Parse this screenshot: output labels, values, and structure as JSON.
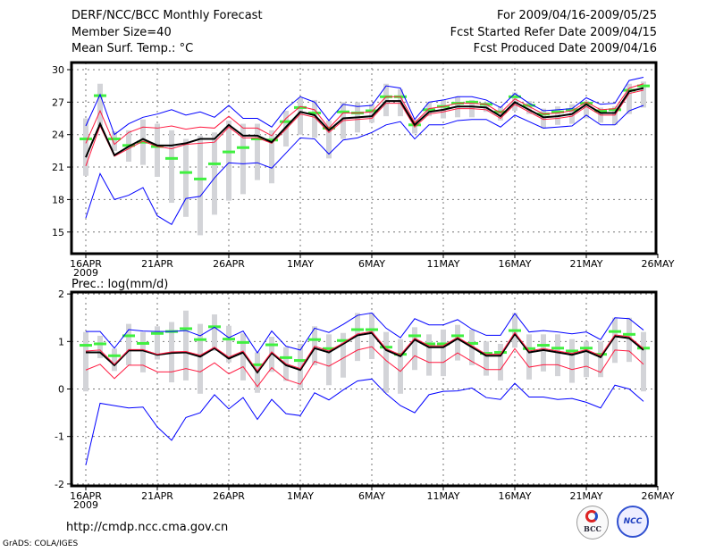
{
  "header": {
    "title": "DERF/NCC/BCC Monthly Forecast",
    "member_size": "Member Size=40",
    "variable": "Mean Surf. Temp.: °C",
    "period": "For 2009/04/16-2009/05/25",
    "started": "Fcst Started Refer Date 2009/04/15",
    "produced": "Fcst Produced Date 2009/04/16"
  },
  "footer": {
    "url": "http://cmdp.ncc.cma.gov.cn",
    "credit": "GrADS: COLA/IGES",
    "logo_bcc": "BCC",
    "logo_ncc": "NCC"
  },
  "colors": {
    "mean": "#000000",
    "red": "#ff1a40",
    "blue": "#0000ff",
    "green": "#40f040",
    "spread": "#d3d4d8"
  },
  "chart_data": [
    {
      "type": "line",
      "title": "Mean Surf. Temp.: °C",
      "ylim": [
        13,
        30.66
      ],
      "yticks": [
        15,
        18,
        21,
        24,
        27,
        30
      ],
      "xtick_labels": [
        "16APR",
        "21APR",
        "26APR",
        "1MAY",
        "6MAY",
        "11MAY",
        "16MAY",
        "21MAY",
        "26MAY"
      ],
      "xtick_year": "2009",
      "grid": true,
      "n_days": 40,
      "series": {
        "mean": [
          21.9,
          25.0,
          22.1,
          22.9,
          23.6,
          23.0,
          23.0,
          23.2,
          23.6,
          23.6,
          24.9,
          23.9,
          23.9,
          23.3,
          24.7,
          26.1,
          25.8,
          24.4,
          25.5,
          25.6,
          25.7,
          27.1,
          27.1,
          24.9,
          26.1,
          26.3,
          26.6,
          26.6,
          26.5,
          25.7,
          27.0,
          26.3,
          25.6,
          25.7,
          25.9,
          26.8,
          26.0,
          26.0,
          28.0,
          28.3
        ],
        "red_upper": [
          23.2,
          26.2,
          23.1,
          24.2,
          24.7,
          24.6,
          24.8,
          24.5,
          24.7,
          24.6,
          25.7,
          24.6,
          24.6,
          23.9,
          25.5,
          26.6,
          26.3,
          24.6,
          26.0,
          26.0,
          26.1,
          27.5,
          27.5,
          25.1,
          26.4,
          26.6,
          26.9,
          26.9,
          26.8,
          26.0,
          27.3,
          26.6,
          25.9,
          26.0,
          26.2,
          27.0,
          26.3,
          26.4,
          28.3,
          28.7
        ],
        "red_lower": [
          21.1,
          24.8,
          22.0,
          22.7,
          23.4,
          22.9,
          22.7,
          23.1,
          23.2,
          23.3,
          24.7,
          23.7,
          23.7,
          23.2,
          24.5,
          25.9,
          25.6,
          24.2,
          25.3,
          25.4,
          25.5,
          26.9,
          26.9,
          24.7,
          25.9,
          26.1,
          26.4,
          26.4,
          26.3,
          25.5,
          26.8,
          26.1,
          25.4,
          25.5,
          25.7,
          26.6,
          25.8,
          25.8,
          27.8,
          28.1
        ],
        "blue_upper": [
          24.8,
          27.7,
          24.0,
          25.0,
          25.6,
          25.9,
          26.3,
          25.8,
          26.1,
          25.6,
          26.7,
          25.5,
          25.5,
          24.7,
          26.4,
          27.5,
          27.0,
          25.3,
          26.8,
          26.6,
          26.7,
          28.5,
          28.3,
          25.4,
          27.0,
          27.2,
          27.5,
          27.5,
          27.2,
          26.5,
          27.8,
          26.9,
          26.2,
          26.3,
          26.4,
          27.4,
          26.8,
          26.9,
          29.0,
          29.3
        ],
        "blue_lower": [
          16.3,
          20.4,
          18.0,
          18.4,
          19.1,
          16.5,
          15.7,
          18.1,
          18.3,
          20.0,
          21.4,
          21.3,
          21.4,
          20.9,
          22.3,
          23.7,
          23.6,
          22.2,
          23.5,
          23.7,
          24.2,
          24.9,
          25.2,
          23.6,
          24.9,
          24.9,
          25.3,
          25.4,
          25.4,
          24.7,
          25.8,
          25.2,
          24.6,
          24.7,
          24.8,
          25.8,
          24.9,
          24.9,
          26.2,
          26.7
        ],
        "green": [
          23.6,
          27.6,
          23.6,
          23.0,
          23.3,
          22.9,
          21.8,
          20.5,
          19.9,
          21.3,
          22.4,
          22.8,
          23.6,
          23.5,
          25.2,
          26.5,
          26.0,
          24.6,
          26.1,
          26.0,
          26.2,
          27.5,
          27.5,
          24.9,
          26.3,
          26.6,
          26.9,
          27.0,
          26.8,
          26.1,
          27.5,
          26.7,
          25.9,
          26.1,
          26.3,
          26.9,
          26.2,
          26.3,
          28.1,
          28.5
        ],
        "spread_low": [
          20.2,
          24.8,
          22.5,
          21.5,
          21.2,
          20.1,
          17.7,
          16.4,
          14.7,
          16.6,
          17.9,
          18.5,
          19.8,
          19.5,
          22.9,
          24.0,
          23.7,
          21.8,
          23.6,
          24.2,
          25.1,
          25.7,
          25.7,
          24.1,
          25.7,
          25.5,
          25.6,
          25.6,
          26.1,
          25.3,
          26.2,
          25.9,
          24.6,
          24.9,
          25.0,
          25.5,
          25.1,
          24.9,
          25.9,
          26.5
        ],
        "spread_high": [
          25.5,
          28.7,
          24.3,
          24.4,
          25.4,
          25.0,
          24.4,
          23.6,
          23.9,
          24.2,
          25.3,
          25.0,
          25.0,
          24.4,
          26.2,
          27.4,
          27.2,
          25.3,
          27.0,
          27.0,
          26.8,
          28.7,
          28.2,
          25.4,
          27.0,
          27.2,
          27.5,
          27.2,
          27.0,
          26.6,
          27.9,
          27.1,
          26.4,
          26.6,
          26.8,
          27.1,
          26.5,
          26.6,
          28.7,
          28.9
        ]
      }
    },
    {
      "type": "line",
      "title": "Prec.: log(mm/d)",
      "ylim": [
        -2.04,
        2.04
      ],
      "yticks": [
        -2,
        -1,
        0,
        1,
        2
      ],
      "xtick_labels": [
        "16APR",
        "21APR",
        "26APR",
        "1MAY",
        "6MAY",
        "11MAY",
        "16MAY",
        "21MAY",
        "26MAY"
      ],
      "xtick_year": "2009",
      "grid": true,
      "n_days": 40,
      "series": {
        "mean": [
          0.77,
          0.77,
          0.5,
          0.81,
          0.81,
          0.72,
          0.76,
          0.77,
          0.68,
          0.86,
          0.64,
          0.77,
          0.35,
          0.76,
          0.5,
          0.4,
          0.86,
          0.77,
          0.95,
          1.13,
          1.18,
          0.82,
          0.69,
          1.04,
          0.88,
          0.88,
          1.06,
          0.88,
          0.7,
          0.7,
          1.16,
          0.77,
          0.82,
          0.77,
          0.72,
          0.8,
          0.67,
          1.11,
          1.07,
          0.82
        ],
        "red_upper": [
          0.8,
          0.82,
          0.52,
          0.83,
          0.83,
          0.73,
          0.78,
          0.79,
          0.71,
          0.88,
          0.67,
          0.8,
          0.38,
          0.78,
          0.53,
          0.43,
          0.9,
          0.8,
          0.97,
          1.16,
          1.21,
          0.85,
          0.72,
          1.07,
          0.91,
          0.91,
          1.09,
          0.91,
          0.73,
          0.73,
          1.19,
          0.8,
          0.85,
          0.8,
          0.75,
          0.83,
          0.7,
          1.14,
          1.1,
          0.85
        ],
        "red_lower": [
          0.4,
          0.52,
          0.22,
          0.5,
          0.5,
          0.36,
          0.36,
          0.43,
          0.36,
          0.55,
          0.32,
          0.47,
          0.05,
          0.45,
          0.2,
          0.1,
          0.58,
          0.48,
          0.65,
          0.82,
          0.89,
          0.6,
          0.37,
          0.7,
          0.56,
          0.56,
          0.76,
          0.58,
          0.41,
          0.41,
          0.85,
          0.46,
          0.51,
          0.51,
          0.41,
          0.48,
          0.35,
          0.82,
          0.8,
          0.52
        ],
        "blue_upper": [
          1.21,
          1.21,
          0.86,
          1.25,
          1.22,
          1.21,
          1.21,
          1.23,
          1.12,
          1.3,
          1.08,
          1.22,
          0.76,
          1.22,
          0.9,
          0.82,
          1.28,
          1.19,
          1.36,
          1.55,
          1.6,
          1.28,
          1.08,
          1.48,
          1.35,
          1.35,
          1.46,
          1.26,
          1.13,
          1.13,
          1.59,
          1.2,
          1.23,
          1.2,
          1.16,
          1.2,
          1.04,
          1.5,
          1.48,
          1.24
        ],
        "blue_lower": [
          -1.6,
          -0.3,
          -0.35,
          -0.4,
          -0.38,
          -0.8,
          -1.08,
          -0.6,
          -0.5,
          -0.12,
          -0.42,
          -0.18,
          -0.64,
          -0.22,
          -0.52,
          -0.56,
          -0.08,
          -0.23,
          -0.02,
          0.17,
          0.21,
          -0.1,
          -0.35,
          -0.5,
          -0.12,
          -0.05,
          -0.04,
          0.02,
          -0.18,
          -0.22,
          0.12,
          -0.17,
          -0.17,
          -0.22,
          -0.2,
          -0.28,
          -0.4,
          0.08,
          0.0,
          -0.26
        ],
        "green": [
          0.92,
          0.95,
          0.7,
          1.12,
          0.96,
          1.17,
          1.21,
          1.27,
          1.04,
          1.31,
          1.05,
          0.98,
          0.51,
          0.93,
          0.66,
          0.6,
          1.04,
          0.85,
          1.02,
          1.25,
          1.25,
          0.88,
          0.73,
          1.12,
          0.95,
          0.95,
          1.12,
          0.96,
          0.75,
          0.77,
          1.23,
          0.85,
          0.92,
          0.86,
          0.8,
          0.86,
          0.73,
          1.21,
          1.15,
          0.86
        ],
        "spread_low": [
          -0.05,
          0.65,
          0.38,
          0.5,
          0.35,
          0.62,
          0.14,
          0.18,
          -0.1,
          0.8,
          0.56,
          0.18,
          -0.08,
          0.36,
          0.17,
          0.02,
          0.5,
          0.08,
          0.24,
          0.59,
          0.63,
          -0.08,
          -0.1,
          0.4,
          0.28,
          0.27,
          0.6,
          0.5,
          0.28,
          0.18,
          0.87,
          0.2,
          0.37,
          0.27,
          0.13,
          0.25,
          0.25,
          0.55,
          0.57,
          -0.05
        ],
        "spread_high": [
          1.2,
          1.12,
          0.85,
          1.37,
          1.2,
          1.32,
          1.41,
          1.65,
          1.37,
          1.57,
          1.33,
          1.17,
          0.77,
          1.1,
          0.88,
          0.95,
          1.32,
          1.15,
          1.18,
          1.6,
          1.6,
          1.2,
          1.05,
          1.3,
          1.15,
          1.25,
          1.35,
          1.25,
          1.0,
          0.95,
          1.6,
          1.15,
          1.15,
          1.15,
          1.05,
          1.0,
          1.0,
          1.5,
          1.5,
          1.2
        ]
      }
    }
  ]
}
